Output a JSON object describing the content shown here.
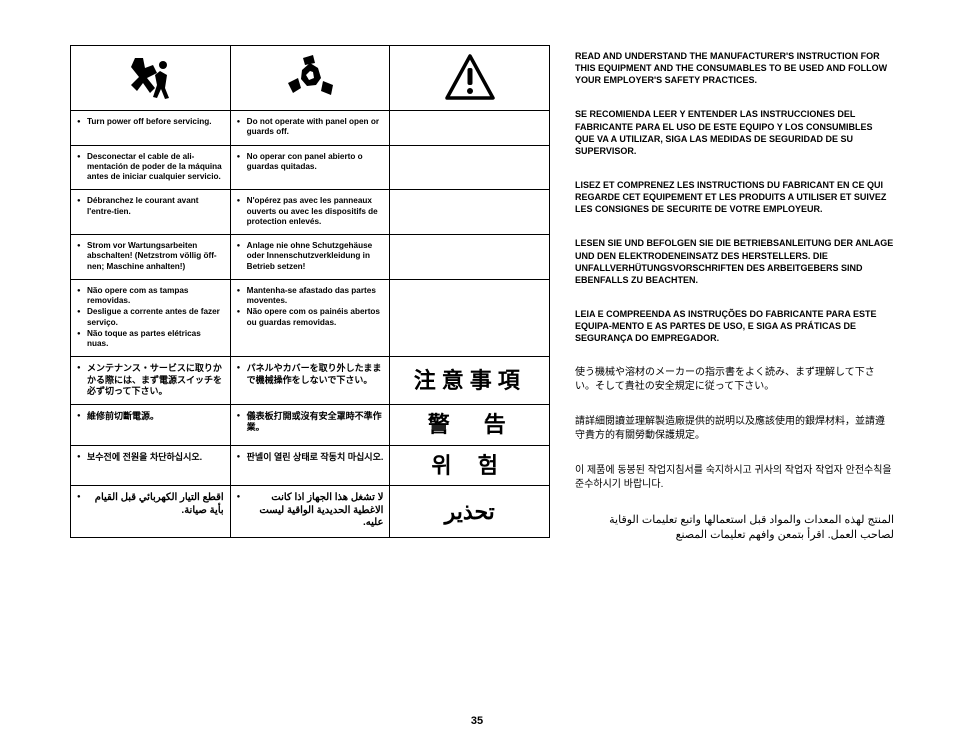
{
  "table": {
    "rows": [
      {
        "c1": [
          "Turn power off before servicing."
        ],
        "c2": [
          "Do not operate with panel open or guards off."
        ],
        "c3": ""
      },
      {
        "c1": [
          "Desconectar el cable de ali-mentación de poder de la máquina antes de iniciar cualquier servicio."
        ],
        "c2": [
          "No operar con panel abierto o guardas quitadas."
        ],
        "c3": ""
      },
      {
        "c1": [
          "Débranchez le courant avant l'entre-tien."
        ],
        "c2": [
          "N'opérez pas avec les panneaux ouverts ou avec les dispositifs de protection enlevés."
        ],
        "c3": ""
      },
      {
        "c1": [
          "Strom vor Wartungsarbeiten abschalten! (Netzstrom völlig öff-nen; Maschine anhalten!)"
        ],
        "c2": [
          "Anlage nie ohne Schutzgehäuse oder Innenschutzverkleidung in Betrieb setzen!"
        ],
        "c3": ""
      },
      {
        "c1": [
          "Não opere com as tampas removidas.",
          "Desligue a corrente antes de fazer serviço.",
          "Não toque as partes elétricas nuas."
        ],
        "c2": [
          "Mantenha-se afastado das partes moventes.",
          "Não opere com os painéis abertos ou guardas removidas."
        ],
        "c3": ""
      },
      {
        "c1_cjk": [
          "メンテナンス・サービスに取りかかる際には、まず電源スイッチを必ず切って下さい。"
        ],
        "c2_cjk": [
          "パネルやカバーを取り外したままで機械操作をしないで下さい。"
        ],
        "c3_lbl": "注意事項"
      },
      {
        "c1_cjk": [
          "維修前切斷電源。"
        ],
        "c2_cjk": [
          "儀表板打開或沒有安全罩時不準作業。"
        ],
        "c3_lbl": "警　告"
      },
      {
        "c1_cjk": [
          "보수전에 전원을 차단하십시오."
        ],
        "c2_cjk": [
          "판넬이 열린 상태로 작동치 마십시오."
        ],
        "c3_ko": "위 험"
      },
      {
        "c1_ar": "اقطع التيار الكهربائي قبل القيام بأية صيانة.",
        "c2_ar": "لا تشغل هذا الجهاز اذا كانت الاغطية الحديدية الواقية ليست عليه.",
        "c3_ar": "تحذير"
      }
    ]
  },
  "right": [
    {
      "type": "b",
      "text": "READ AND UNDERSTAND THE MANUFACTURER'S INSTRUCTION FOR THIS EQUIPMENT AND THE CONSUMABLES TO BE USED AND FOLLOW YOUR EMPLOYER'S SAFETY PRACTICES."
    },
    {
      "type": "b",
      "text": "SE RECOMIENDA LEER Y ENTENDER LAS INSTRUCCIONES DEL FABRICANTE PARA EL USO DE ESTE EQUIPO Y LOS CONSUMIBLES QUE VA A UTILIZAR, SIGA LAS MEDIDAS DE SEGURIDAD DE SU SUPERVISOR."
    },
    {
      "type": "b",
      "text": "LISEZ ET COMPRENEZ LES INSTRUCTIONS DU FABRICANT EN CE QUI REGARDE CET EQUIPEMENT ET LES PRODUITS A UTILISER ET SUIVEZ LES CONSIGNES DE SECURITE DE VOTRE EMPLOYEUR."
    },
    {
      "type": "b",
      "text": "LESEN SIE UND BEFOLGEN SIE DIE BETRIEBSANLEITUNG DER ANLAGE UND DEN ELEKTRODENEINSATZ DES HERSTELLERS. DIE UNFALLVERHÜTUNGSVORSCHRIFTEN DES ARBEITGEBERS SIND EBENFALLS ZU BEACHTEN."
    },
    {
      "type": "b",
      "text": "LEIA E COMPREENDA AS INSTRUÇÕES DO FABRICANTE PARA ESTE EQUIPA-MENTO E AS PARTES DE USO, E SIGA AS PRÁTICAS DE SEGURANÇA DO EMPREGADOR."
    },
    {
      "type": "cjk",
      "text": "使う機械や溶材のメーカーの指示書をよく読み、まず理解して下さい。そして貴社の安全規定に従って下さい。"
    },
    {
      "type": "cjk",
      "text": "請詳細閱讀並理解製造廠提供的説明以及應該使用的銀焊材料，並請遵守貴方的有關勞動保護規定。"
    },
    {
      "type": "cjk",
      "text": "이 제품에 동봉된 작업지침서를 숙지하시고 귀사의 작업자 작업자 안전수칙을 준수하시기 바랍니다."
    },
    {
      "type": "ar",
      "text": "المنتج لهذه المعدات والمواد قبل استعمالها واتبع تعليمات الوقاية لصاحب العمل. اقرأ بتمعن وافهم تعليمات المصنع"
    }
  ],
  "page_number": "35"
}
